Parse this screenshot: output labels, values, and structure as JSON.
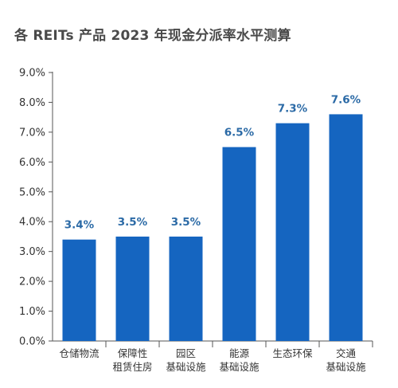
{
  "chart_data": {
    "type": "bar",
    "title": "各 REITs 产品 2023 年现金分派率水平测算",
    "categories": [
      [
        "仓储物流"
      ],
      [
        "保障性",
        "租赁住房"
      ],
      [
        "园区",
        "基础设施"
      ],
      [
        "能源",
        "基础设施"
      ],
      [
        "生态环保"
      ],
      [
        "交通",
        "基础设施"
      ]
    ],
    "values": [
      3.4,
      3.5,
      3.5,
      6.5,
      7.3,
      7.6
    ],
    "value_labels": [
      "3.4%",
      "3.5%",
      "3.5%",
      "6.5%",
      "7.3%",
      "7.6%"
    ],
    "y_ticks": [
      "0.0%",
      "1.0%",
      "2.0%",
      "3.0%",
      "4.0%",
      "5.0%",
      "6.0%",
      "7.0%",
      "8.0%",
      "9.0%"
    ],
    "ylim": [
      0,
      9
    ],
    "grid": false,
    "legend": "none",
    "colors": {
      "bar": "#1565c0",
      "axis": "#555555",
      "data_label": "#2b6aa6"
    }
  }
}
